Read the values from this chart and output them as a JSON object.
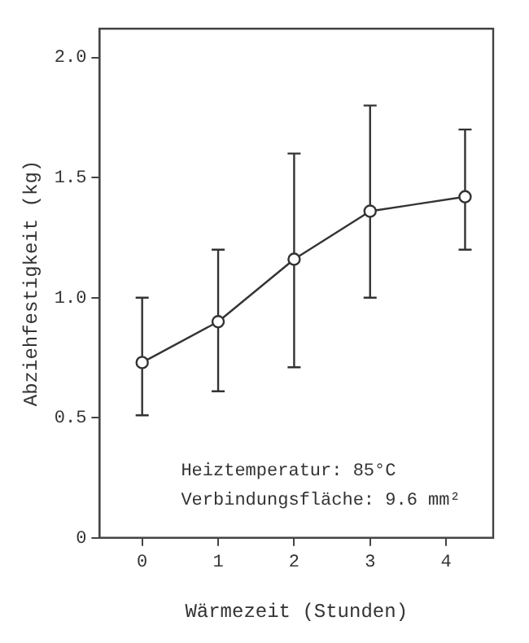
{
  "chart_data": {
    "type": "line",
    "xlabel": "Wärmezeit (Stunden)",
    "ylabel": "Abziehfestigkeit (kg)",
    "annotations": [
      "Heiztemperatur: 85°C",
      "Verbindungsfläche: 9.6 mm²"
    ],
    "series": [
      {
        "x": [
          0,
          1,
          2,
          3,
          4.25
        ],
        "values": [
          0.73,
          0.9,
          1.16,
          1.36,
          1.42
        ],
        "errors": [
          [
            0.51,
            1.0
          ],
          [
            0.61,
            1.2
          ],
          [
            0.71,
            1.6
          ],
          [
            1.0,
            1.8
          ],
          [
            1.2,
            1.7
          ]
        ],
        "color": "#333333"
      }
    ],
    "xlim": [
      -0.56,
      4.62
    ],
    "xticks": [
      0,
      1,
      2,
      3,
      4
    ],
    "ylim": [
      0,
      2.12
    ],
    "yticks": [
      0,
      {
        "value": 0.5,
        "label": "0.5"
      },
      {
        "value": 1,
        "label": "1.0"
      },
      {
        "value": 1.5,
        "label": "1.5"
      },
      {
        "value": 2,
        "label": "2.0"
      }
    ],
    "grid": false,
    "legend": false,
    "marker": "circle",
    "line_style": "solid"
  }
}
